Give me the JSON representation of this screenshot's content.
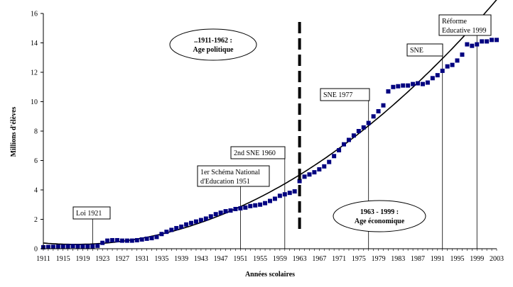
{
  "chart_data": {
    "type": "scatter",
    "title": "",
    "xlabel": "Années scolaires",
    "ylabel": "Millions d'élèves",
    "xlim": [
      1911,
      2003
    ],
    "ylim": [
      0,
      16
    ],
    "yticks": [
      0,
      2,
      4,
      6,
      8,
      10,
      12,
      14,
      16
    ],
    "xticks": [
      1911,
      1915,
      1919,
      1923,
      1927,
      1931,
      1935,
      1939,
      1943,
      1947,
      1951,
      1955,
      1959,
      1963,
      1967,
      1971,
      1975,
      1979,
      1983,
      1987,
      1991,
      1995,
      1999,
      2003
    ],
    "marker_color": "#000080",
    "trend_color": "#000000",
    "series": [
      {
        "marker": "square",
        "x": [
          1911,
          1912,
          1913,
          1914,
          1915,
          1916,
          1917,
          1918,
          1919,
          1920,
          1921,
          1922,
          1923,
          1924,
          1925,
          1926,
          1927,
          1928,
          1929,
          1930,
          1931,
          1932,
          1933,
          1934,
          1935,
          1936,
          1937,
          1938,
          1939,
          1940,
          1941,
          1942,
          1943,
          1944,
          1945,
          1946,
          1947,
          1948,
          1949,
          1950,
          1951,
          1952,
          1953,
          1954,
          1955,
          1956,
          1957,
          1958,
          1959,
          1960,
          1961,
          1962,
          1963,
          1964,
          1965,
          1966,
          1967,
          1968,
          1969,
          1970,
          1971,
          1972,
          1973,
          1974,
          1975,
          1976,
          1977,
          1978,
          1979,
          1980,
          1981,
          1982,
          1983,
          1984,
          1985,
          1986,
          1987,
          1988,
          1989,
          1990,
          1991,
          1992,
          1993,
          1994,
          1995,
          1996,
          1997,
          1998,
          1999,
          2000,
          2001,
          2002,
          2003
        ],
        "y": [
          0.1,
          0.12,
          0.13,
          0.14,
          0.15,
          0.17,
          0.18,
          0.17,
          0.16,
          0.16,
          0.17,
          0.2,
          0.4,
          0.55,
          0.58,
          0.58,
          0.55,
          0.55,
          0.55,
          0.58,
          0.63,
          0.68,
          0.72,
          0.8,
          1.0,
          1.15,
          1.28,
          1.4,
          1.5,
          1.65,
          1.75,
          1.85,
          1.95,
          2.05,
          2.2,
          2.35,
          2.45,
          2.55,
          2.6,
          2.7,
          2.75,
          2.8,
          2.9,
          2.95,
          3.0,
          3.1,
          3.25,
          3.4,
          3.6,
          3.7,
          3.8,
          3.9,
          4.6,
          4.9,
          5.05,
          5.2,
          5.4,
          5.6,
          5.9,
          6.3,
          6.7,
          7.1,
          7.4,
          7.7,
          8.0,
          8.25,
          8.55,
          9.0,
          9.35,
          9.75,
          10.7,
          11.0,
          11.05,
          11.1,
          11.1,
          11.2,
          11.25,
          11.2,
          11.3,
          11.6,
          11.8,
          12.1,
          12.4,
          12.5,
          12.8,
          13.2,
          13.9,
          13.8,
          13.9,
          14.1,
          14.1,
          14.2,
          14.2
        ]
      },
      {
        "type": "polynomial-trend",
        "coefficients": [
          0.3905,
          -0.029,
          0.00227
        ]
      }
    ],
    "vertical_marker": {
      "x": 1963,
      "style": "dashed"
    },
    "annotations": [
      {
        "label": "Loi 1921",
        "x": 1921
      },
      {
        "label_lines": [
          "1er Schéma National",
          "d'Education  1951"
        ],
        "x": 1951
      },
      {
        "label": "2nd SNE  1960",
        "x": 1960
      },
      {
        "label": "SNE 1977",
        "x": 1977
      },
      {
        "label": "SNE",
        "x": 1992
      },
      {
        "label_lines": [
          "Réforme",
          "Educative 1999"
        ],
        "x": 1999
      }
    ],
    "periods": [
      {
        "label_lines": [
          "..1911-1962 :",
          "Age politique"
        ]
      },
      {
        "label_lines": [
          "1963 - 1999 :",
          "Age économique"
        ]
      }
    ]
  }
}
